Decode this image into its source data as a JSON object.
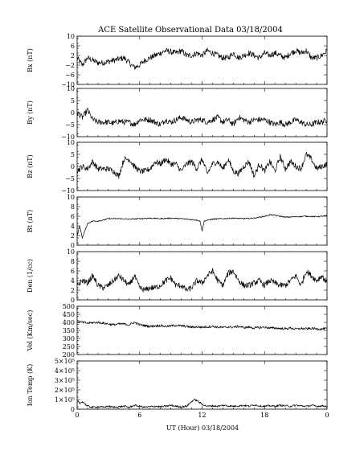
{
  "chart_data": {
    "type": "line",
    "title": "ACE Satellite Observational Data   03/18/2004",
    "xlabel": "UT (Hour)   03/18/2004",
    "x_range": [
      0,
      24
    ],
    "x_ticks": [
      "0",
      "6",
      "12",
      "18",
      "0"
    ],
    "line_color": "#000000",
    "panels": [
      {
        "name": "bx",
        "ylabel": "Bx (nT)",
        "ylim": [
          -10,
          10
        ],
        "y_ticks": [
          "10",
          "6",
          "2",
          "−2",
          "−6",
          "−10"
        ],
        "series": [
          {
            "x": [
              0,
              0.5,
              1,
              1.5,
              2,
              2.5,
              3,
              3.5,
              4,
              4.5,
              5,
              5.5,
              6,
              6.5,
              7,
              7.5,
              8,
              8.5,
              9,
              9.5,
              10,
              10.5,
              11,
              11.5,
              12,
              12.5,
              13,
              13.5,
              14,
              14.5,
              15,
              15.5,
              16,
              16.5,
              17,
              17.5,
              18,
              18.5,
              19,
              19.5,
              20,
              20.5,
              21,
              21.5,
              22,
              22.5,
              23,
              23.5,
              24
            ],
            "y": [
              1,
              -2,
              1,
              0,
              -1,
              -1,
              -0.5,
              0,
              0.5,
              1,
              -1,
              -3,
              -2,
              0,
              1,
              2,
              3,
              4,
              3.5,
              3,
              4,
              2,
              2,
              3,
              2,
              4,
              3,
              2,
              1,
              1,
              3,
              1,
              2,
              3,
              2,
              1,
              3,
              2,
              3,
              2,
              1,
              3,
              4,
              3,
              4,
              1,
              1,
              2,
              4
            ]
          }
        ]
      },
      {
        "name": "by",
        "ylabel": "By (nT)",
        "ylim": [
          -10,
          10
        ],
        "y_ticks": [
          "10",
          "5",
          "0",
          "−5",
          "−10"
        ],
        "series": [
          {
            "x": [
              0,
              0.5,
              1,
              1.5,
              2,
              2.5,
              3,
              3.5,
              4,
              4.5,
              5,
              5.5,
              6,
              6.5,
              7,
              7.5,
              8,
              8.5,
              9,
              9.5,
              10,
              10.5,
              11,
              11.5,
              12,
              12.5,
              13,
              13.5,
              14,
              14.5,
              15,
              15.5,
              16,
              16.5,
              17,
              17.5,
              18,
              18.5,
              19,
              19.5,
              20,
              20.5,
              21,
              21.5,
              22,
              22.5,
              23,
              23.5,
              24
            ],
            "y": [
              0,
              -2,
              1,
              -3,
              -4,
              -4,
              -4,
              -4.5,
              -3.5,
              -4,
              -4,
              -5,
              -3,
              -3,
              -3,
              -4,
              -5,
              -3,
              -4,
              -3,
              -2,
              -3,
              -4,
              -3,
              -3,
              -4,
              -3,
              -2,
              -4,
              -3,
              -5,
              -2,
              -3,
              -4,
              -3,
              -3,
              -3,
              -4,
              -5,
              -4,
              -5,
              -4,
              -3,
              -4,
              -5,
              -5,
              -4,
              -4,
              -3
            ]
          }
        ]
      },
      {
        "name": "bz",
        "ylabel": "Bz (nT)",
        "ylim": [
          -10,
          10
        ],
        "y_ticks": [
          "10",
          "5",
          "0",
          "−5",
          "−10"
        ],
        "series": [
          {
            "x": [
              0,
              0.5,
              1,
              1.5,
              2,
              2.5,
              3,
              3.5,
              4,
              4.5,
              5,
              5.5,
              6,
              6.5,
              7,
              7.5,
              8,
              8.5,
              9,
              9.5,
              10,
              10.5,
              11,
              11.5,
              12,
              12.5,
              13,
              13.5,
              14,
              14.5,
              15,
              15.5,
              16,
              16.5,
              17,
              17.5,
              18,
              18.5,
              19,
              19.5,
              20,
              20.5,
              21,
              21.5,
              22,
              22.5,
              23,
              23.5,
              24
            ],
            "y": [
              -2,
              0,
              -1,
              2,
              -1,
              -1,
              -1,
              -2,
              -4,
              3,
              3,
              0,
              -2,
              -2,
              -1,
              2,
              1,
              3,
              1,
              1,
              -2,
              1,
              2,
              -1,
              3,
              -3,
              1,
              2,
              -1,
              3,
              -2,
              -3,
              0,
              2,
              -4,
              1,
              -2,
              2,
              -2,
              4,
              -1,
              2,
              0,
              -1,
              5,
              3,
              -1,
              0,
              1
            ]
          }
        ]
      },
      {
        "name": "bt",
        "ylabel": "Bt (nT)",
        "ylim": [
          0,
          10
        ],
        "y_ticks": [
          "10",
          "8",
          "6",
          "4",
          "2",
          "0"
        ],
        "series": [
          {
            "x": [
              0,
              0.25,
              0.5,
              1,
              1.5,
              2,
              2.5,
              3,
              4,
              5,
              6,
              7,
              8,
              9,
              10,
              11,
              11.5,
              11.8,
              12,
              12.2,
              12.5,
              13,
              14,
              15,
              16,
              17,
              18,
              18.5,
              19,
              19.5,
              20,
              21,
              22,
              23,
              24
            ],
            "y": [
              2,
              4,
              1.5,
              4.5,
              5,
              5,
              5.2,
              5.5,
              5.5,
              5.4,
              5.5,
              5.6,
              5.5,
              5.6,
              5.5,
              5.3,
              5.2,
              5.0,
              3.0,
              5.0,
              5.2,
              5.4,
              5.5,
              5.6,
              5.5,
              5.6,
              6.0,
              6.3,
              6.2,
              6.0,
              5.8,
              5.9,
              6.0,
              5.9,
              6.1
            ]
          }
        ]
      },
      {
        "name": "den",
        "ylabel": "Den (1/cc)",
        "ylim": [
          0,
          10
        ],
        "y_ticks": [
          "10",
          "8",
          "6",
          "4",
          "2",
          "0"
        ],
        "series": [
          {
            "x": [
              0,
              0.5,
              1,
              1.5,
              2,
              2.5,
              3,
              3.5,
              4,
              4.5,
              5,
              5.5,
              6,
              6.5,
              7,
              7.5,
              8,
              8.5,
              9,
              9.5,
              10,
              10.5,
              11,
              11.5,
              12,
              12.5,
              13,
              13.5,
              14,
              14.5,
              15,
              15.5,
              16,
              16.5,
              17,
              17.5,
              18,
              18.5,
              19,
              19.5,
              20,
              20.5,
              21,
              21.5,
              22,
              22.5,
              23,
              23.5,
              24
            ],
            "y": [
              3,
              4,
              3.5,
              5,
              3,
              2.5,
              3,
              4,
              5,
              4,
              3,
              5,
              2.5,
              2,
              2.5,
              2.5,
              3,
              4,
              4.5,
              3,
              3,
              2,
              2.5,
              4,
              3.5,
              5,
              6,
              4,
              3,
              5.5,
              6,
              4,
              3,
              3,
              3.5,
              4,
              3,
              4,
              3.5,
              3,
              3,
              4,
              5,
              3,
              6,
              5,
              4,
              5,
              3.5
            ]
          }
        ]
      },
      {
        "name": "vel",
        "ylabel": "Vel (Km/sec)",
        "ylim": [
          200,
          500
        ],
        "y_ticks": [
          "500",
          "450",
          "400",
          "350",
          "300",
          "250",
          "200"
        ],
        "series": [
          {
            "x": [
              0,
              0.5,
              1,
              1.5,
              2,
              2.5,
              3,
              3.5,
              4,
              4.5,
              5,
              5.5,
              6,
              6.5,
              7,
              7.5,
              8,
              8.5,
              9,
              9.5,
              10,
              10.5,
              11,
              11.5,
              12,
              12.5,
              13,
              13.5,
              14,
              14.5,
              15,
              15.5,
              16,
              16.5,
              17,
              17.5,
              18,
              18.5,
              19,
              19.5,
              20,
              20.5,
              21,
              21.5,
              22,
              22.5,
              23,
              23.5,
              24
            ],
            "y": [
              405,
              400,
              395,
              398,
              400,
              395,
              390,
              385,
              390,
              390,
              385,
              400,
              385,
              380,
              375,
              378,
              380,
              375,
              378,
              382,
              378,
              375,
              370,
              372,
              370,
              372,
              375,
              370,
              368,
              372,
              370,
              375,
              368,
              370,
              365,
              368,
              370,
              365,
              365,
              362,
              360,
              365,
              358,
              362,
              360,
              362,
              360,
              358,
              362
            ]
          }
        ]
      },
      {
        "name": "ion-temp",
        "ylabel": "Ion Temp (K)",
        "ylim": [
          0,
          500000
        ],
        "y_ticks": [
          "5×10⁵",
          "4×10⁵",
          "3×10⁵",
          "2×10⁵",
          "1×10⁵",
          "0"
        ],
        "series": [
          {
            "x": [
              0,
              0.25,
              0.5,
              1,
              1.5,
              2,
              2.5,
              3,
              3.5,
              4,
              4.5,
              5,
              5.5,
              6,
              6.5,
              7,
              7.5,
              8,
              8.5,
              9,
              9.5,
              10,
              10.5,
              11,
              11.25,
              11.5,
              12,
              12.5,
              13,
              13.5,
              14,
              14.5,
              15,
              15.5,
              16,
              16.5,
              17,
              17.5,
              18,
              18.5,
              19,
              19.5,
              20,
              20.5,
              21,
              21.5,
              22,
              22.5,
              23,
              23.5,
              24
            ],
            "y": [
              90000,
              60000,
              80000,
              30000,
              20000,
              25000,
              20000,
              30000,
              20000,
              25000,
              30000,
              20000,
              40000,
              30000,
              20000,
              25000,
              30000,
              25000,
              30000,
              40000,
              30000,
              25000,
              30000,
              80000,
              100000,
              90000,
              50000,
              30000,
              35000,
              30000,
              40000,
              35000,
              30000,
              35000,
              40000,
              30000,
              45000,
              35000,
              30000,
              35000,
              30000,
              40000,
              35000,
              30000,
              40000,
              35000,
              30000,
              40000,
              30000,
              35000,
              30000
            ]
          }
        ]
      }
    ]
  }
}
